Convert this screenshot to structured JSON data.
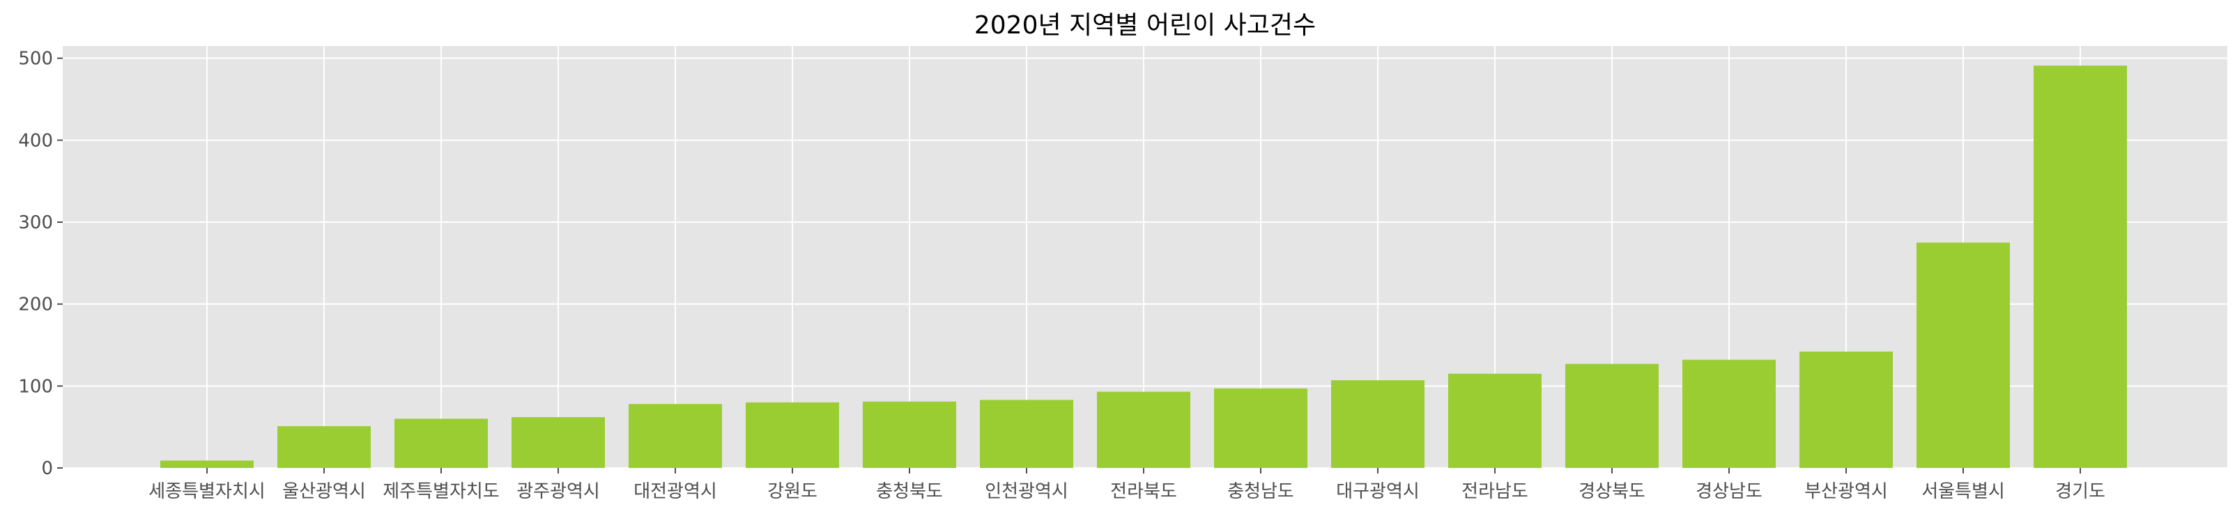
{
  "chart_data": {
    "type": "bar",
    "title": "2020년 지역별 어린이 사고건수",
    "xlabel": "",
    "ylabel": "",
    "categories": [
      "세종특별자치시",
      "울산광역시",
      "제주특별자치도",
      "광주광역시",
      "대전광역시",
      "강원도",
      "충청북도",
      "인천광역시",
      "전라북도",
      "충청남도",
      "대구광역시",
      "전라남도",
      "경상북도",
      "경상남도",
      "부산광역시",
      "서울특별시",
      "경기도"
    ],
    "values": [
      9,
      51,
      60,
      62,
      78,
      80,
      81,
      83,
      93,
      97,
      107,
      115,
      127,
      132,
      142,
      275,
      491
    ],
    "ylim": [
      0,
      515
    ],
    "yticks": [
      0,
      100,
      200,
      300,
      400,
      500
    ],
    "grid": true,
    "legend": "none",
    "bar_color": "#9ACD32",
    "plot_background": "#E5E5E5",
    "grid_color": "#FFFFFF"
  }
}
